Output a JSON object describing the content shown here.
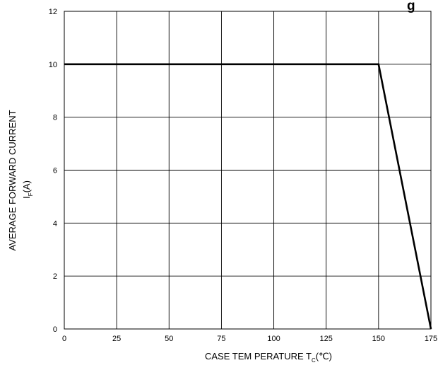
{
  "chart_data": {
    "type": "line",
    "title_fragment": "g",
    "xlabel": {
      "main": "CASE TEM PERATURE  T",
      "sub": "C",
      "unit": "(℃)"
    },
    "ylabel": {
      "line1": "AVERAGE FORWARD CURRENT",
      "line2_main": "I",
      "line2_sub": "F",
      "line2_unit": "(A)"
    },
    "xlim": [
      0,
      175
    ],
    "ylim": [
      0,
      12
    ],
    "xticks": [
      0,
      25,
      50,
      75,
      100,
      125,
      150,
      175
    ],
    "yticks": [
      0,
      2,
      4,
      6,
      8,
      10,
      12
    ],
    "grid": true,
    "series": [
      {
        "x": [
          0,
          150,
          175
        ],
        "y": [
          10,
          10,
          0
        ]
      }
    ]
  }
}
